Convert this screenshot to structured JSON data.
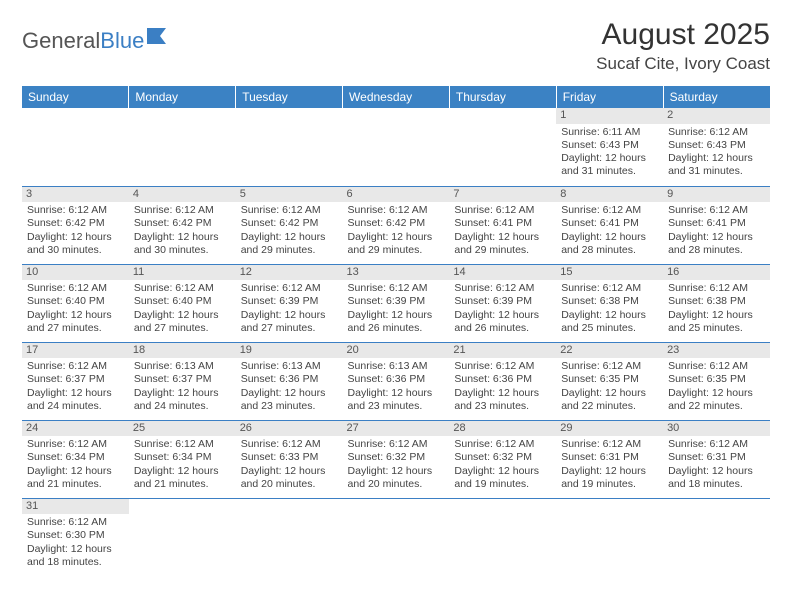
{
  "logo": {
    "text_general": "General",
    "text_blue": "Blue"
  },
  "title": {
    "month": "August 2025",
    "location": "Sucaf Cite, Ivory Coast"
  },
  "colors": {
    "header_bg": "#3b82c4",
    "header_text": "#ffffff",
    "daynum_bg": "#e8e8e8",
    "cell_border": "#3b7fc4",
    "body_text": "#444444",
    "logo_gray": "#555555",
    "logo_blue": "#3b7fc4"
  },
  "weekdays": [
    "Sunday",
    "Monday",
    "Tuesday",
    "Wednesday",
    "Thursday",
    "Friday",
    "Saturday"
  ],
  "weeks": [
    [
      null,
      null,
      null,
      null,
      null,
      {
        "n": "1",
        "sunrise": "Sunrise: 6:11 AM",
        "sunset": "Sunset: 6:43 PM",
        "day1": "Daylight: 12 hours",
        "day2": "and 31 minutes."
      },
      {
        "n": "2",
        "sunrise": "Sunrise: 6:12 AM",
        "sunset": "Sunset: 6:43 PM",
        "day1": "Daylight: 12 hours",
        "day2": "and 31 minutes."
      }
    ],
    [
      {
        "n": "3",
        "sunrise": "Sunrise: 6:12 AM",
        "sunset": "Sunset: 6:42 PM",
        "day1": "Daylight: 12 hours",
        "day2": "and 30 minutes."
      },
      {
        "n": "4",
        "sunrise": "Sunrise: 6:12 AM",
        "sunset": "Sunset: 6:42 PM",
        "day1": "Daylight: 12 hours",
        "day2": "and 30 minutes."
      },
      {
        "n": "5",
        "sunrise": "Sunrise: 6:12 AM",
        "sunset": "Sunset: 6:42 PM",
        "day1": "Daylight: 12 hours",
        "day2": "and 29 minutes."
      },
      {
        "n": "6",
        "sunrise": "Sunrise: 6:12 AM",
        "sunset": "Sunset: 6:42 PM",
        "day1": "Daylight: 12 hours",
        "day2": "and 29 minutes."
      },
      {
        "n": "7",
        "sunrise": "Sunrise: 6:12 AM",
        "sunset": "Sunset: 6:41 PM",
        "day1": "Daylight: 12 hours",
        "day2": "and 29 minutes."
      },
      {
        "n": "8",
        "sunrise": "Sunrise: 6:12 AM",
        "sunset": "Sunset: 6:41 PM",
        "day1": "Daylight: 12 hours",
        "day2": "and 28 minutes."
      },
      {
        "n": "9",
        "sunrise": "Sunrise: 6:12 AM",
        "sunset": "Sunset: 6:41 PM",
        "day1": "Daylight: 12 hours",
        "day2": "and 28 minutes."
      }
    ],
    [
      {
        "n": "10",
        "sunrise": "Sunrise: 6:12 AM",
        "sunset": "Sunset: 6:40 PM",
        "day1": "Daylight: 12 hours",
        "day2": "and 27 minutes."
      },
      {
        "n": "11",
        "sunrise": "Sunrise: 6:12 AM",
        "sunset": "Sunset: 6:40 PM",
        "day1": "Daylight: 12 hours",
        "day2": "and 27 minutes."
      },
      {
        "n": "12",
        "sunrise": "Sunrise: 6:12 AM",
        "sunset": "Sunset: 6:39 PM",
        "day1": "Daylight: 12 hours",
        "day2": "and 27 minutes."
      },
      {
        "n": "13",
        "sunrise": "Sunrise: 6:12 AM",
        "sunset": "Sunset: 6:39 PM",
        "day1": "Daylight: 12 hours",
        "day2": "and 26 minutes."
      },
      {
        "n": "14",
        "sunrise": "Sunrise: 6:12 AM",
        "sunset": "Sunset: 6:39 PM",
        "day1": "Daylight: 12 hours",
        "day2": "and 26 minutes."
      },
      {
        "n": "15",
        "sunrise": "Sunrise: 6:12 AM",
        "sunset": "Sunset: 6:38 PM",
        "day1": "Daylight: 12 hours",
        "day2": "and 25 minutes."
      },
      {
        "n": "16",
        "sunrise": "Sunrise: 6:12 AM",
        "sunset": "Sunset: 6:38 PM",
        "day1": "Daylight: 12 hours",
        "day2": "and 25 minutes."
      }
    ],
    [
      {
        "n": "17",
        "sunrise": "Sunrise: 6:12 AM",
        "sunset": "Sunset: 6:37 PM",
        "day1": "Daylight: 12 hours",
        "day2": "and 24 minutes."
      },
      {
        "n": "18",
        "sunrise": "Sunrise: 6:13 AM",
        "sunset": "Sunset: 6:37 PM",
        "day1": "Daylight: 12 hours",
        "day2": "and 24 minutes."
      },
      {
        "n": "19",
        "sunrise": "Sunrise: 6:13 AM",
        "sunset": "Sunset: 6:36 PM",
        "day1": "Daylight: 12 hours",
        "day2": "and 23 minutes."
      },
      {
        "n": "20",
        "sunrise": "Sunrise: 6:13 AM",
        "sunset": "Sunset: 6:36 PM",
        "day1": "Daylight: 12 hours",
        "day2": "and 23 minutes."
      },
      {
        "n": "21",
        "sunrise": "Sunrise: 6:12 AM",
        "sunset": "Sunset: 6:36 PM",
        "day1": "Daylight: 12 hours",
        "day2": "and 23 minutes."
      },
      {
        "n": "22",
        "sunrise": "Sunrise: 6:12 AM",
        "sunset": "Sunset: 6:35 PM",
        "day1": "Daylight: 12 hours",
        "day2": "and 22 minutes."
      },
      {
        "n": "23",
        "sunrise": "Sunrise: 6:12 AM",
        "sunset": "Sunset: 6:35 PM",
        "day1": "Daylight: 12 hours",
        "day2": "and 22 minutes."
      }
    ],
    [
      {
        "n": "24",
        "sunrise": "Sunrise: 6:12 AM",
        "sunset": "Sunset: 6:34 PM",
        "day1": "Daylight: 12 hours",
        "day2": "and 21 minutes."
      },
      {
        "n": "25",
        "sunrise": "Sunrise: 6:12 AM",
        "sunset": "Sunset: 6:34 PM",
        "day1": "Daylight: 12 hours",
        "day2": "and 21 minutes."
      },
      {
        "n": "26",
        "sunrise": "Sunrise: 6:12 AM",
        "sunset": "Sunset: 6:33 PM",
        "day1": "Daylight: 12 hours",
        "day2": "and 20 minutes."
      },
      {
        "n": "27",
        "sunrise": "Sunrise: 6:12 AM",
        "sunset": "Sunset: 6:32 PM",
        "day1": "Daylight: 12 hours",
        "day2": "and 20 minutes."
      },
      {
        "n": "28",
        "sunrise": "Sunrise: 6:12 AM",
        "sunset": "Sunset: 6:32 PM",
        "day1": "Daylight: 12 hours",
        "day2": "and 19 minutes."
      },
      {
        "n": "29",
        "sunrise": "Sunrise: 6:12 AM",
        "sunset": "Sunset: 6:31 PM",
        "day1": "Daylight: 12 hours",
        "day2": "and 19 minutes."
      },
      {
        "n": "30",
        "sunrise": "Sunrise: 6:12 AM",
        "sunset": "Sunset: 6:31 PM",
        "day1": "Daylight: 12 hours",
        "day2": "and 18 minutes."
      }
    ],
    [
      {
        "n": "31",
        "sunrise": "Sunrise: 6:12 AM",
        "sunset": "Sunset: 6:30 PM",
        "day1": "Daylight: 12 hours",
        "day2": "and 18 minutes."
      },
      null,
      null,
      null,
      null,
      null,
      null
    ]
  ]
}
